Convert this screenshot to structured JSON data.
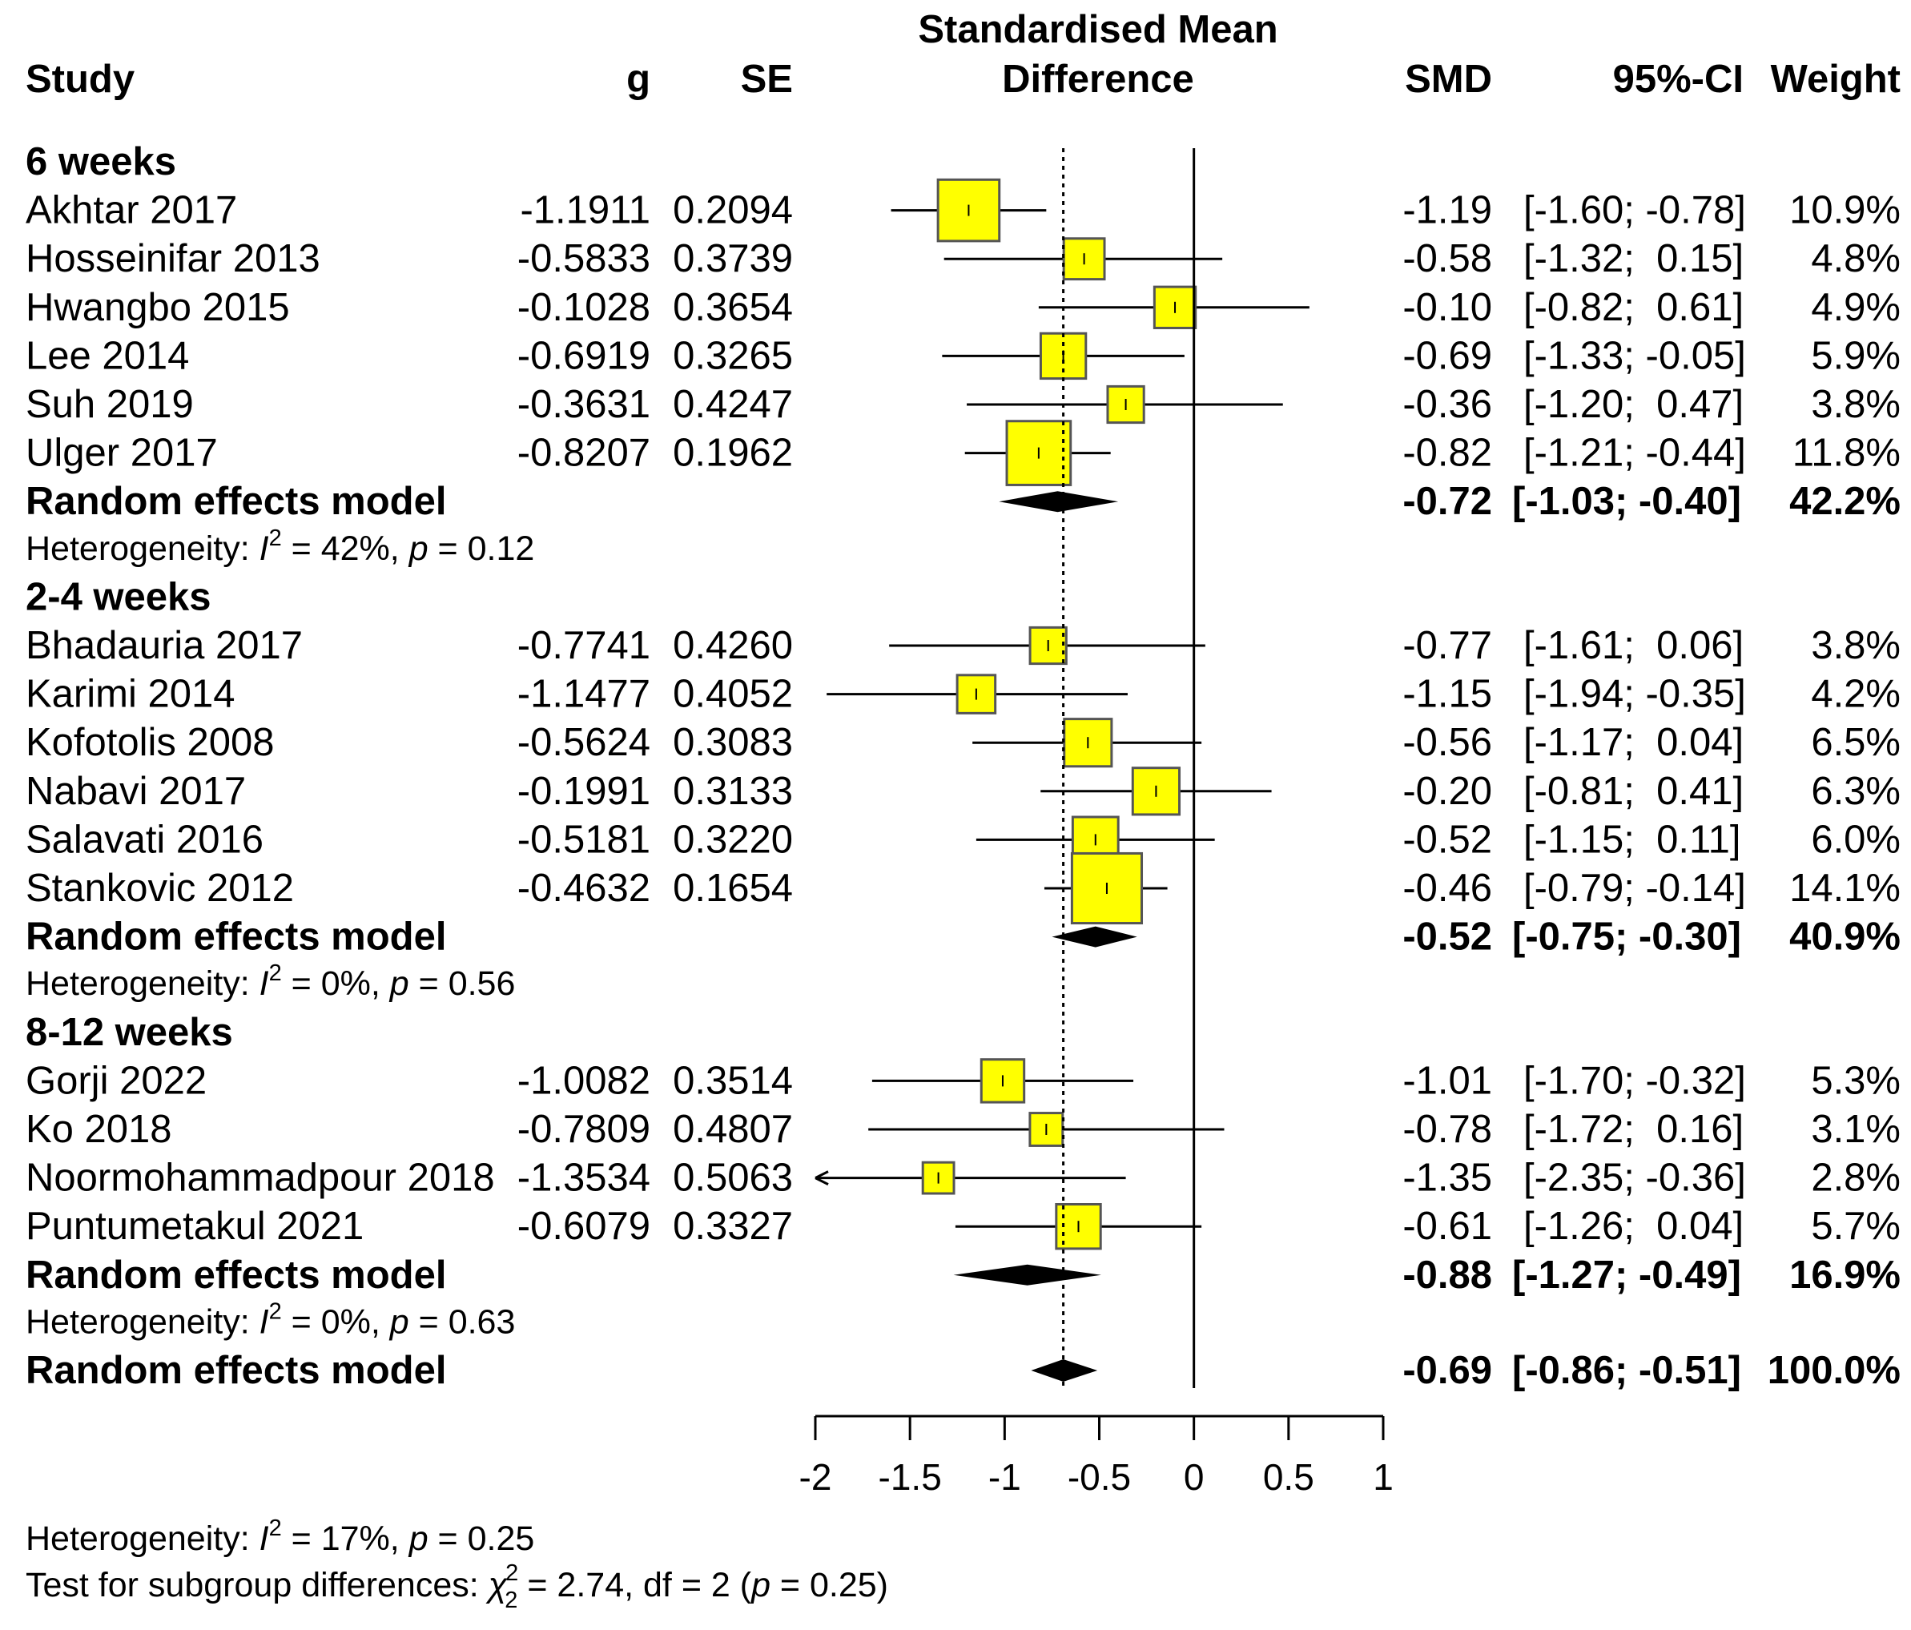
{
  "chart_data": {
    "type": "forest",
    "title": "Standardised Mean Difference",
    "headers": {
      "study": "Study",
      "g": "g",
      "se": "SE",
      "plot_line1": "Standardised Mean",
      "plot_line2": "Difference",
      "smd": "SMD",
      "ci": "95%-CI",
      "weight": "Weight"
    },
    "xlim": [
      -2,
      1
    ],
    "ticks": [
      -2,
      -1.5,
      -1,
      -0.5,
      0,
      0.5,
      1
    ],
    "tick_labels": [
      "-2",
      "-1.5",
      "-1",
      "-0.5",
      "0",
      "0.5",
      "1"
    ],
    "null_line": 0,
    "pooled_line": -0.69,
    "subgroups": [
      {
        "label": "6 weeks",
        "studies": [
          {
            "study": "Akhtar 2017",
            "g": "-1.1911",
            "se": "0.2094",
            "smd": "-1.19",
            "ci": "[-1.60; -0.78]",
            "weight": "10.9%",
            "est": -1.19,
            "lo": -1.6,
            "hi": -0.78,
            "w": 10.9
          },
          {
            "study": "Hosseinifar 2013",
            "g": "-0.5833",
            "se": "0.3739",
            "smd": "-0.58",
            "ci": "[-1.32;  0.15]",
            "weight": "4.8%",
            "est": -0.58,
            "lo": -1.32,
            "hi": 0.15,
            "w": 4.8
          },
          {
            "study": "Hwangbo 2015",
            "g": "-0.1028",
            "se": "0.3654",
            "smd": "-0.10",
            "ci": "[-0.82;  0.61]",
            "weight": "4.9%",
            "est": -0.1,
            "lo": -0.82,
            "hi": 0.61,
            "w": 4.9
          },
          {
            "study": "Lee 2014",
            "g": "-0.6919",
            "se": "0.3265",
            "smd": "-0.69",
            "ci": "[-1.33; -0.05]",
            "weight": "5.9%",
            "est": -0.69,
            "lo": -1.33,
            "hi": -0.05,
            "w": 5.9
          },
          {
            "study": "Suh 2019",
            "g": "-0.3631",
            "se": "0.4247",
            "smd": "-0.36",
            "ci": "[-1.20;  0.47]",
            "weight": "3.8%",
            "est": -0.36,
            "lo": -1.2,
            "hi": 0.47,
            "w": 3.8
          },
          {
            "study": "Ulger 2017",
            "g": "-0.8207",
            "se": "0.1962",
            "smd": "-0.82",
            "ci": "[-1.21; -0.44]",
            "weight": "11.8%",
            "est": -0.82,
            "lo": -1.21,
            "hi": -0.44,
            "w": 11.8
          }
        ],
        "model": {
          "label": "Random effects model",
          "smd": "-0.72",
          "ci": "[-1.03; -0.40]",
          "weight": "42.2%",
          "est": -0.72,
          "lo": -1.03,
          "hi": -0.4
        },
        "het_prefix": "Heterogeneity: ",
        "het_i2": "2",
        "het_rest": " = 42%, ",
        "het_p": " = 0.12"
      },
      {
        "label": "2-4 weeks",
        "studies": [
          {
            "study": "Bhadauria 2017",
            "g": "-0.7741",
            "se": "0.4260",
            "smd": "-0.77",
            "ci": "[-1.61;  0.06]",
            "weight": "3.8%",
            "est": -0.77,
            "lo": -1.61,
            "hi": 0.06,
            "w": 3.8
          },
          {
            "study": "Karimi 2014",
            "g": "-1.1477",
            "se": "0.4052",
            "smd": "-1.15",
            "ci": "[-1.94; -0.35]",
            "weight": "4.2%",
            "est": -1.15,
            "lo": -1.94,
            "hi": -0.35,
            "w": 4.2
          },
          {
            "study": "Kofotolis 2008",
            "g": "-0.5624",
            "se": "0.3083",
            "smd": "-0.56",
            "ci": "[-1.17;  0.04]",
            "weight": "6.5%",
            "est": -0.56,
            "lo": -1.17,
            "hi": 0.04,
            "w": 6.5
          },
          {
            "study": "Nabavi 2017",
            "g": "-0.1991",
            "se": "0.3133",
            "smd": "-0.20",
            "ci": "[-0.81;  0.41]",
            "weight": "6.3%",
            "est": -0.2,
            "lo": -0.81,
            "hi": 0.41,
            "w": 6.3
          },
          {
            "study": "Salavati 2016",
            "g": "-0.5181",
            "se": "0.3220",
            "smd": "-0.52",
            "ci": "[-1.15;  0.11]",
            "weight": "6.0%",
            "est": -0.52,
            "lo": -1.15,
            "hi": 0.11,
            "w": 6.0
          },
          {
            "study": "Stankovic 2012",
            "g": "-0.4632",
            "se": "0.1654",
            "smd": "-0.46",
            "ci": "[-0.79; -0.14]",
            "weight": "14.1%",
            "est": -0.46,
            "lo": -0.79,
            "hi": -0.14,
            "w": 14.1
          }
        ],
        "model": {
          "label": "Random effects model",
          "smd": "-0.52",
          "ci": "[-0.75; -0.30]",
          "weight": "40.9%",
          "est": -0.52,
          "lo": -0.75,
          "hi": -0.3
        },
        "het_prefix": "Heterogeneity: ",
        "het_i2": "2",
        "het_rest": " = 0%, ",
        "het_p": " = 0.56"
      },
      {
        "label": "8-12 weeks",
        "studies": [
          {
            "study": "Gorji 2022",
            "g": "-1.0082",
            "se": "0.3514",
            "smd": "-1.01",
            "ci": "[-1.70; -0.32]",
            "weight": "5.3%",
            "est": -1.01,
            "lo": -1.7,
            "hi": -0.32,
            "w": 5.3
          },
          {
            "study": "Ko 2018",
            "g": "-0.7809",
            "se": "0.4807",
            "smd": "-0.78",
            "ci": "[-1.72;  0.16]",
            "weight": "3.1%",
            "est": -0.78,
            "lo": -1.72,
            "hi": 0.16,
            "w": 3.1
          },
          {
            "study": "Noormohammadpour 2018",
            "g": "-1.3534",
            "se": "0.5063",
            "smd": "-1.35",
            "ci": "[-2.35; -0.36]",
            "weight": "2.8%",
            "est": -1.35,
            "lo": -2.35,
            "hi": -0.36,
            "w": 2.8
          },
          {
            "study": "Puntumetakul 2021",
            "g": "-0.6079",
            "se": "0.3327",
            "smd": "-0.61",
            "ci": "[-1.26;  0.04]",
            "weight": "5.7%",
            "est": -0.61,
            "lo": -1.26,
            "hi": 0.04,
            "w": 5.7
          }
        ],
        "model": {
          "label": "Random effects model",
          "smd": "-0.88",
          "ci": "[-1.27; -0.49]",
          "weight": "16.9%",
          "est": -0.88,
          "lo": -1.27,
          "hi": -0.49
        },
        "het_prefix": "Heterogeneity: ",
        "het_i2": "2",
        "het_rest": " = 0%, ",
        "het_p": " = 0.63"
      }
    ],
    "overall": {
      "label": "Random effects model",
      "smd": "-0.69",
      "ci": "[-0.86; -0.51]",
      "weight": "100.0%",
      "est": -0.69,
      "lo": -0.86,
      "hi": -0.51
    },
    "overall_het": {
      "prefix": "Heterogeneity: ",
      "i2": "2",
      "rest": " = 17%, ",
      "p": " = 0.25"
    },
    "subgroup_test": {
      "prefix": "Test for subgroup differences: ",
      "chi": "χ",
      "chi_sup": "2",
      "chi_sub": "2",
      "rest": " = 2.74, df = 2 (",
      "p": " = 0.25)"
    },
    "symbols": {
      "I": "I",
      "p": "p",
      "open_paren_p": "p"
    },
    "colors": {
      "box_fill": "#ffff00",
      "box_stroke": "#555555",
      "diamond": "#000000",
      "line": "#000000"
    }
  }
}
